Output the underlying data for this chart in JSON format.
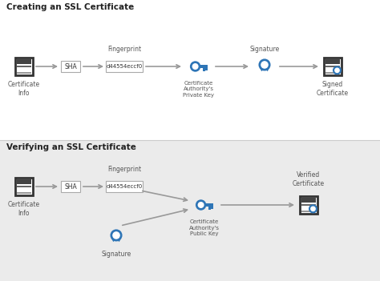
{
  "title1": "Creating an SSL Certificate",
  "title2": "Verifying an SSL Certificate",
  "bg_top": "#ffffff",
  "bg_bottom": "#ebebeb",
  "divider_color": "#cccccc",
  "title_color": "#222222",
  "text_color": "#555555",
  "arrow_color": "#999999",
  "box_border_color": "#aaaaaa",
  "blue_color": "#2e75b6",
  "fingerprint_text": "d44554eccf0",
  "sha_text": "SHA",
  "fingerprint_label": "Fingerprint",
  "signature_label": "Signature",
  "cert_info_label": "Certificate\nInfo",
  "ca_private_key_label": "Certificate\nAuthority's\nPrivate Key",
  "signed_cert_label": "Signed\nCertificate",
  "ca_public_key_label": "Certificate\nAuthority's\nPublic Key",
  "verified_cert_label": "Verified\nCertificate"
}
